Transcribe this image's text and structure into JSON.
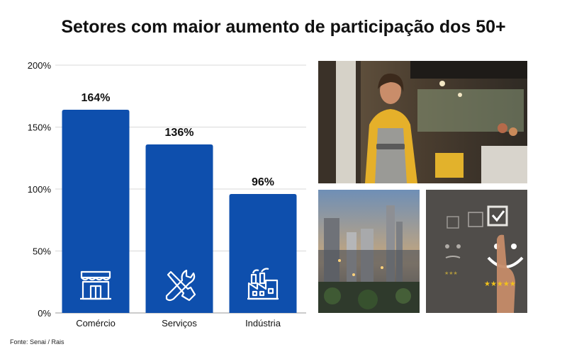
{
  "title": "Setores com maior aumento de participação dos 50+",
  "source": "Fonte: Senai / Rais",
  "colors": {
    "bar": "#0e4fad",
    "grid": "#d9d9d9",
    "text": "#111111",
    "icon": "#ffffff"
  },
  "chart_data": {
    "type": "bar",
    "categories": [
      "Comércio",
      "Serviços",
      "Indústria"
    ],
    "values": [
      164,
      136,
      96
    ],
    "value_labels": [
      "164%",
      "136%",
      "96%"
    ],
    "category_icons": [
      "storefront-icon",
      "wrench-screwdriver-icon",
      "factory-icon"
    ],
    "yticks": [
      0,
      50,
      100,
      150,
      200
    ],
    "ytick_labels": [
      "0%",
      "50%",
      "100%",
      "150%",
      "200%"
    ],
    "ylim": [
      0,
      200
    ],
    "grid": true,
    "legend": "none"
  },
  "photos": [
    "waitress-photo",
    "factory-photo",
    "rating-photo"
  ]
}
